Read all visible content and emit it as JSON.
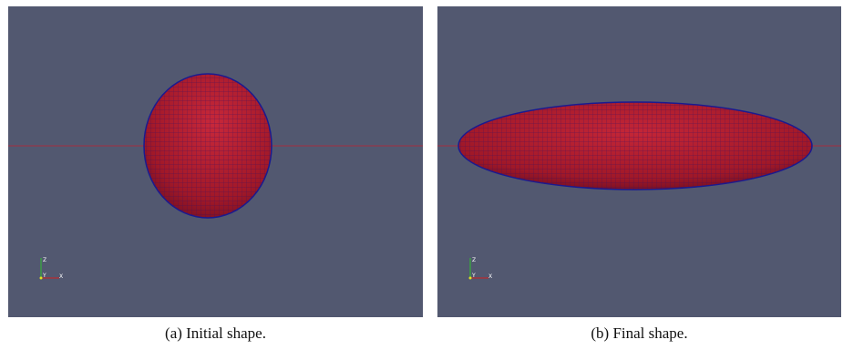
{
  "panels": [
    {
      "caption": "(a) Initial shape.",
      "axes": {
        "z": "Z",
        "x": "X",
        "y": "Y"
      }
    },
    {
      "caption": "(b) Final shape.",
      "axes": {
        "z": "Z",
        "x": "X",
        "y": "Y"
      }
    }
  ]
}
